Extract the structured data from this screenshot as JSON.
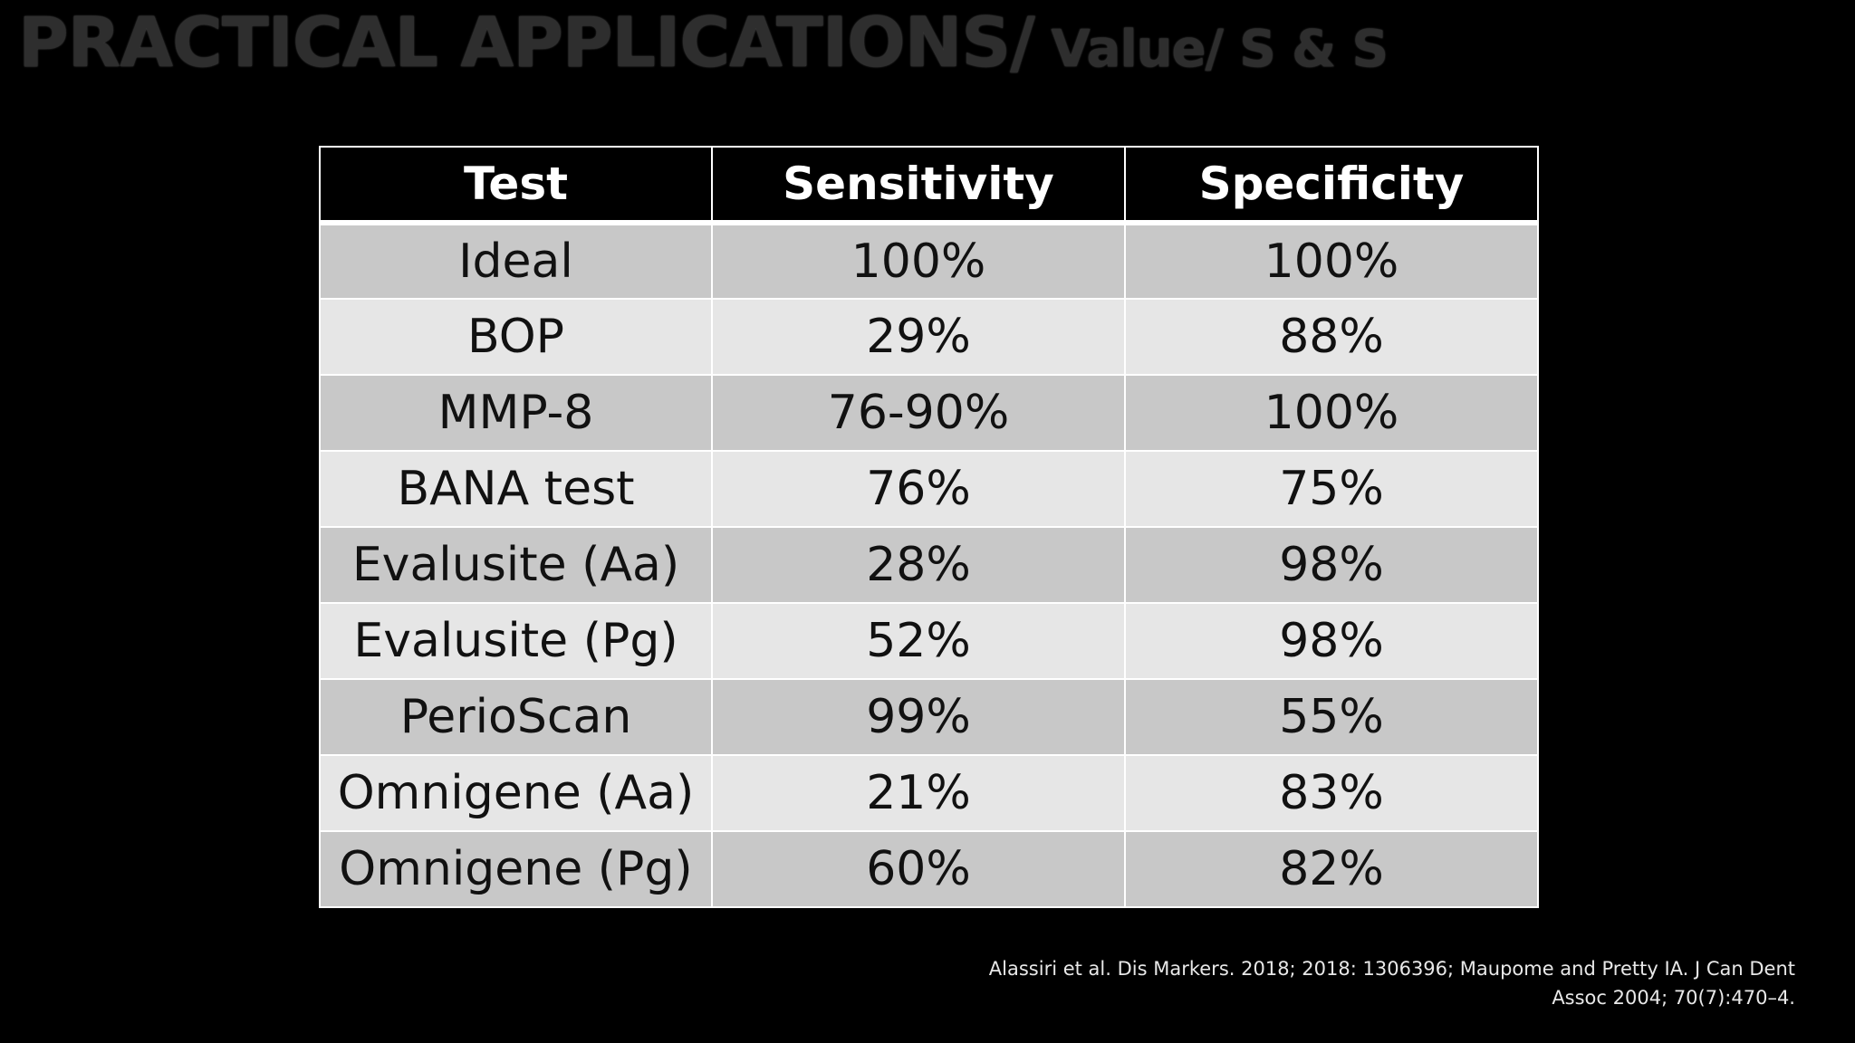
{
  "title": {
    "main": "PRACTICAL APPLICATIONS/",
    "sub": " Value/ S & S"
  },
  "table": {
    "headers": [
      "Test",
      "Sensitivity",
      "Specificity"
    ],
    "rows": [
      [
        "Ideal",
        "100%",
        "100%"
      ],
      [
        "BOP",
        "29%",
        "88%"
      ],
      [
        "MMP-8",
        "76-90%",
        "100%"
      ],
      [
        "BANA test",
        "76%",
        "75%"
      ],
      [
        "Evalusite (Aa)",
        "28%",
        "98%"
      ],
      [
        "Evalusite (Pg)",
        "52%",
        "98%"
      ],
      [
        "PerioScan",
        "99%",
        "55%"
      ],
      [
        "Omnigene (Aa)",
        "21%",
        "83%"
      ],
      [
        "Omnigene (Pg)",
        "60%",
        "82%"
      ]
    ]
  },
  "citation": {
    "line1": "Alassiri et al. Dis Markers. 2018; 2018: 1306396; Maupome and Pretty IA. J Can Dent",
    "line2": "Assoc 2004; 70(7):470–4."
  },
  "colors": {
    "background": "#000000",
    "header_bg": "#000000",
    "row_dark": "#c8c8c8",
    "row_light": "#e6e6e6"
  }
}
